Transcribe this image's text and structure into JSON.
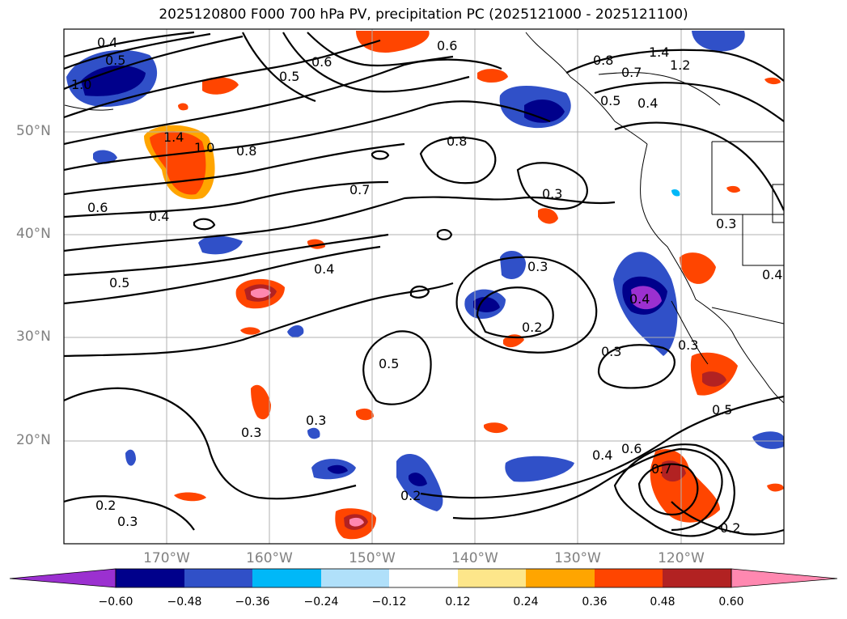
{
  "title": "2025120800 F000 700 hPa PV, precipitation PC (2025121000 - 2025121100)",
  "latitude_labels": [
    "50°N",
    "40°N",
    "30°N",
    "20°N"
  ],
  "longitude_labels": [
    "170°W",
    "160°W",
    "150°W",
    "140°W",
    "130°W",
    "120°W"
  ],
  "colorbar": {
    "ticks": [
      "−0.60",
      "−0.48",
      "−0.36",
      "−0.24",
      "−0.12",
      "0.12",
      "0.24",
      "0.36",
      "0.48",
      "0.60"
    ],
    "colors": [
      "#9b30d0",
      "#00008b",
      "#3050c8",
      "#00b8f8",
      "#b0e0fa",
      "#ffffff",
      "#fde68a",
      "#ffa500",
      "#ff4500",
      "#b22222",
      "#ff88b0"
    ]
  },
  "contour_labels": [
    "0.4",
    "0.5",
    "1.0",
    "0.5",
    "0.6",
    "0.6",
    "1.4",
    "1.2",
    "0.8",
    "0.7",
    "0.5",
    "0.4",
    "1.4",
    "1.0",
    "0.8",
    "0.8",
    "0.7",
    "0.3",
    "0.6",
    "0.4",
    "0.3",
    "0.5",
    "0.4",
    "0.3",
    "0.4",
    "0.4",
    "0.2",
    "0.3",
    "0.3",
    "0.5",
    "0.3",
    "0.3",
    "0.5",
    "0.4",
    "0.6",
    "0.7",
    "0.2",
    "0.2",
    "0.3",
    "0.2"
  ]
}
